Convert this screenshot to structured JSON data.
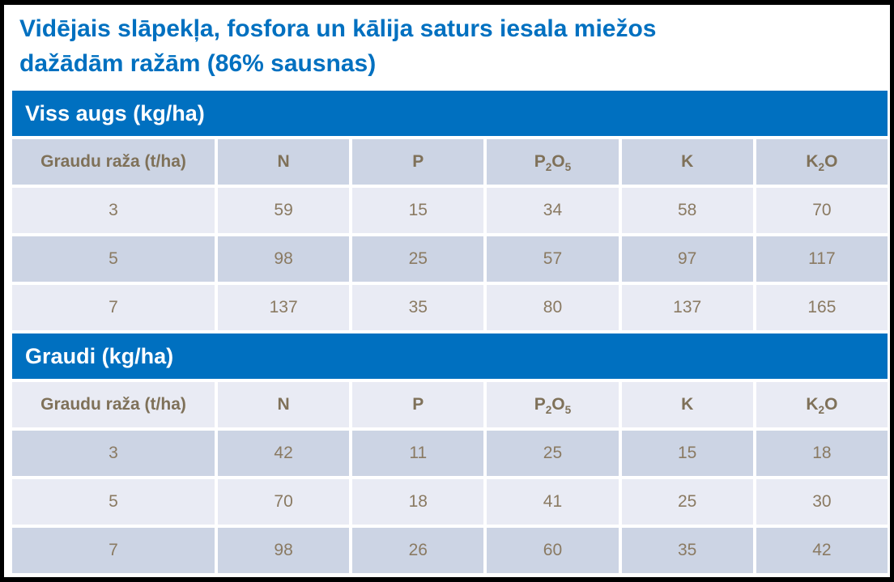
{
  "title": {
    "line1": "Vidējais slāpekļa, fosfora un kālija saturs iesala miežos",
    "line2": "dažādām ražām (86% sausnas)"
  },
  "colors": {
    "accent_blue": "#0070C0",
    "band_dark": "#CCD4E4",
    "band_light": "#E9EBF4",
    "header_text": "#7F7159",
    "data_text": "#8A7A62",
    "section_header_text": "#FFFFFF",
    "frame_border": "#000000",
    "background": "#FFFFFF"
  },
  "table": {
    "columns": [
      "Graudu raža (t/ha)",
      "N",
      "P",
      "P₂O₅",
      "K",
      "K₂O"
    ],
    "sections": [
      {
        "title": "Viss augs (kg/ha)",
        "header_band": "dark",
        "rows": [
          {
            "band": "light",
            "cells": [
              "3",
              "59",
              "15",
              "34",
              "58",
              "70"
            ]
          },
          {
            "band": "dark",
            "cells": [
              "5",
              "98",
              "25",
              "57",
              "97",
              "117"
            ]
          },
          {
            "band": "light",
            "cells": [
              "7",
              "137",
              "35",
              "80",
              "137",
              "165"
            ]
          }
        ]
      },
      {
        "title": "Graudi (kg/ha)",
        "header_band": "light",
        "rows": [
          {
            "band": "dark",
            "cells": [
              "3",
              "42",
              "11",
              "25",
              "15",
              "18"
            ]
          },
          {
            "band": "light",
            "cells": [
              "5",
              "70",
              "18",
              "41",
              "25",
              "30"
            ]
          },
          {
            "band": "dark",
            "cells": [
              "7",
              "98",
              "26",
              "60",
              "35",
              "42"
            ]
          }
        ]
      }
    ]
  },
  "chart_data": [
    {
      "type": "table",
      "title": "Viss augs (kg/ha)",
      "columns": [
        "Graudu raža (t/ha)",
        "N",
        "P",
        "P₂O₅",
        "K",
        "K₂O"
      ],
      "rows": [
        [
          3,
          59,
          15,
          34,
          58,
          70
        ],
        [
          5,
          98,
          25,
          57,
          97,
          117
        ],
        [
          7,
          137,
          35,
          80,
          137,
          165
        ]
      ]
    },
    {
      "type": "table",
      "title": "Graudi (kg/ha)",
      "columns": [
        "Graudu raža (t/ha)",
        "N",
        "P",
        "P₂O₅",
        "K",
        "K₂O"
      ],
      "rows": [
        [
          3,
          42,
          11,
          25,
          15,
          18
        ],
        [
          5,
          70,
          18,
          41,
          25,
          30
        ],
        [
          7,
          98,
          26,
          60,
          35,
          42
        ]
      ]
    }
  ]
}
